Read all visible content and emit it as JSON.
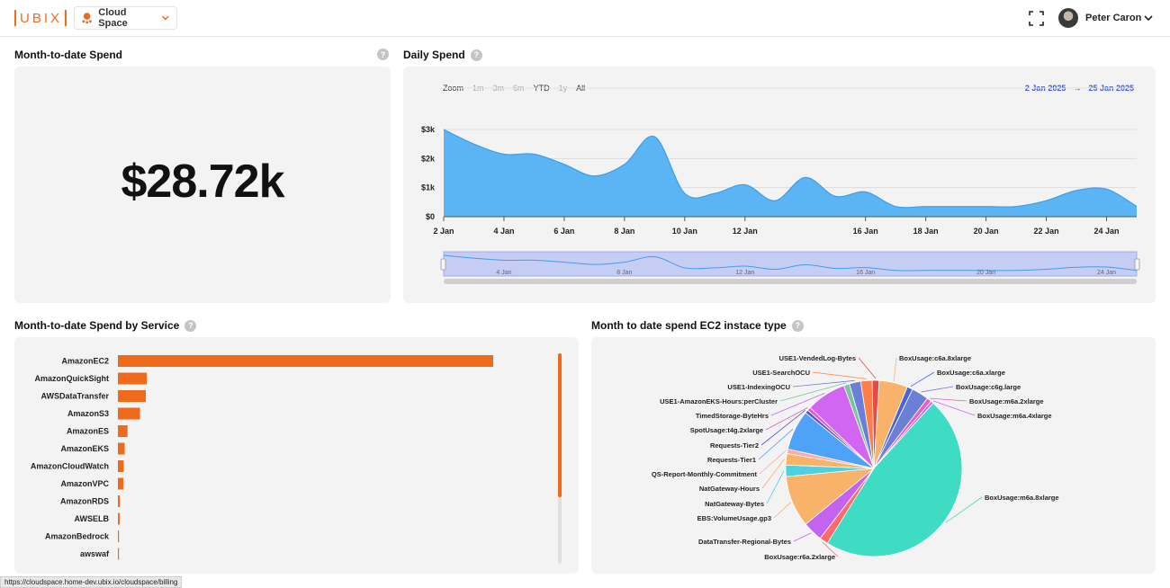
{
  "header": {
    "logo_text": "UBIX",
    "space_name": "Cloud Space",
    "user_name": "Peter Caron",
    "accent_color": "#f06a1c"
  },
  "mtd": {
    "title": "Month-to-date Spend",
    "value": "$28.72k"
  },
  "daily": {
    "title": "Daily Spend",
    "zoom_label": "Zoom",
    "zoom_options": [
      "1m",
      "3m",
      "6m",
      "YTD",
      "1y",
      "All"
    ],
    "range_from": "2 Jan 2025",
    "range_arrow": "→",
    "range_to": "25 Jan 2025",
    "y_ticks": [
      "$0",
      "$1k",
      "$2k",
      "$3k"
    ],
    "x_ticks": [
      "2 Jan",
      "4 Jan",
      "6 Jan",
      "8 Jan",
      "10 Jan",
      "12 Jan",
      "16 Jan",
      "18 Jan",
      "20 Jan",
      "22 Jan",
      "24 Jan"
    ],
    "nav_ticks": [
      "4 Jan",
      "8 Jan",
      "12 Jan",
      "16 Jan",
      "20 Jan",
      "24 Jan"
    ],
    "series_color": "#5bb5f5"
  },
  "by_service": {
    "title": "Month-to-date Spend by Service",
    "bar_color": "#f06a1c"
  },
  "ec2": {
    "title": "Month to date spend EC2 instace type"
  },
  "status_url": "https://cloudspace.home-dev.ubix.io/cloudspace/billing",
  "chart_data": [
    {
      "type": "area",
      "title": "Daily Spend",
      "x": [
        "2 Jan",
        "3 Jan",
        "4 Jan",
        "5 Jan",
        "6 Jan",
        "7 Jan",
        "8 Jan",
        "9 Jan",
        "10 Jan",
        "11 Jan",
        "12 Jan",
        "13 Jan",
        "14 Jan",
        "15 Jan",
        "16 Jan",
        "17 Jan",
        "18 Jan",
        "19 Jan",
        "20 Jan",
        "21 Jan",
        "22 Jan",
        "23 Jan",
        "24 Jan",
        "25 Jan"
      ],
      "values": [
        3000,
        2500,
        2150,
        2150,
        1800,
        1400,
        1800,
        2750,
        800,
        800,
        1100,
        550,
        1350,
        700,
        850,
        350,
        350,
        350,
        350,
        350,
        550,
        900,
        950,
        350
      ],
      "ylim": [
        0,
        3000
      ]
    },
    {
      "type": "bar",
      "title": "Month-to-date Spend by Service",
      "categories": [
        "AmazonEC2",
        "AmazonQuickSight",
        "AWSDataTransfer",
        "AmazonS3",
        "AmazonES",
        "AmazonEKS",
        "AmazonCloudWatch",
        "AmazonVPC",
        "AmazonRDS",
        "AWSELB",
        "AmazonBedrock",
        "awswaf"
      ],
      "values": [
        19500,
        1500,
        1450,
        1150,
        500,
        350,
        300,
        280,
        100,
        90,
        30,
        20
      ]
    },
    {
      "type": "pie",
      "title": "Month to date spend EC2 instace type",
      "categories": [
        "BoxUsage:m6a.8xlarge",
        "BoxUsage:r6a.2xlarge",
        "DataTransfer-Regional-Bytes",
        "EBS:VolumeUsage.gp3",
        "NatGateway-Bytes",
        "NatGateway-Hours",
        "QS-Report-Monthly-Commitment",
        "Requests-Tier1",
        "Requests-Tier2",
        "SpotUsage:t4g.2xlarge",
        "TimedStorage-ByteHrs",
        "USE1-AmazonEKS-Hours:perCluster",
        "USE1-IndexingOCU",
        "USE1-SearchOCU",
        "USE1-VendedLog-Bytes",
        "BoxUsage:c6a.8xlarge",
        "BoxUsage:c6a.xlarge",
        "BoxUsage:c6g.large",
        "BoxUsage:m6a.2xlarge",
        "BoxUsage:m6a.4xlarge"
      ],
      "values": [
        45,
        1.5,
        3.5,
        9,
        2,
        2,
        0.8,
        7,
        0.6,
        0.6,
        7,
        1,
        2,
        2,
        1.2,
        5,
        1,
        3,
        0.8,
        0.5
      ],
      "colors": [
        "#3fdcc4",
        "#ff6b6b",
        "#c264f0",
        "#f8b26a",
        "#4dd0e1",
        "#f8b26a",
        "#ffa8a8",
        "#4fa3f7",
        "#5a52d6",
        "#e157c5",
        "#d066f2",
        "#7cc4a0",
        "#6b7fd7",
        "#ff7e47",
        "#e24b4b",
        "#f8b26a",
        "#4a63d9",
        "#6b7fd7",
        "#f05ab8",
        "#d066f2"
      ]
    }
  ]
}
